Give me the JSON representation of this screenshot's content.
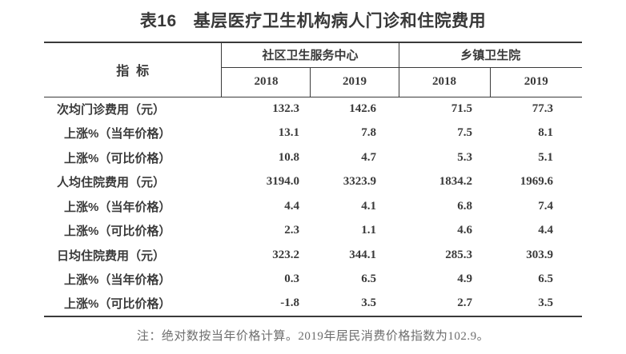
{
  "table": {
    "title_prefix": "表16",
    "title_text": "基层医疗卫生机构病人门诊和住院费用",
    "header": {
      "indicator": "指  标",
      "groups": [
        {
          "label": "社区卫生服务中心",
          "years": [
            "2018",
            "2019"
          ]
        },
        {
          "label": "乡镇卫生院",
          "years": [
            "2018",
            "2019"
          ]
        }
      ]
    },
    "rows": [
      {
        "label": "次均门诊费用（元）",
        "indent": false,
        "values": [
          "132.3",
          "142.6",
          "71.5",
          "77.3"
        ]
      },
      {
        "label": "上涨%（当年价格）",
        "indent": true,
        "values": [
          "13.1",
          "7.8",
          "7.5",
          "8.1"
        ]
      },
      {
        "label": "上涨%（可比价格）",
        "indent": true,
        "values": [
          "10.8",
          "4.7",
          "5.3",
          "5.1"
        ]
      },
      {
        "label": "人均住院费用（元）",
        "indent": false,
        "values": [
          "3194.0",
          "3323.9",
          "1834.2",
          "1969.6"
        ]
      },
      {
        "label": "上涨%（当年价格）",
        "indent": true,
        "values": [
          "4.4",
          "4.1",
          "6.8",
          "7.4"
        ]
      },
      {
        "label": "上涨%（可比价格）",
        "indent": true,
        "values": [
          "2.3",
          "1.1",
          "4.6",
          "4.4"
        ]
      },
      {
        "label": "日均住院费用（元）",
        "indent": false,
        "values": [
          "323.2",
          "344.1",
          "285.3",
          "303.9"
        ]
      },
      {
        "label": "上涨%（当年价格）",
        "indent": true,
        "values": [
          "0.3",
          "6.5",
          "4.9",
          "6.5"
        ]
      },
      {
        "label": "上涨%（可比价格）",
        "indent": true,
        "values": [
          "-1.8",
          "3.5",
          "2.7",
          "3.5"
        ]
      }
    ],
    "note": "注：绝对数按当年价格计算。2019年居民消费价格指数为102.9。"
  },
  "colors": {
    "text": "#3a3a3a",
    "border": "#3a3a3a",
    "note_text": "#6e6e6e",
    "background": "#ffffff"
  }
}
